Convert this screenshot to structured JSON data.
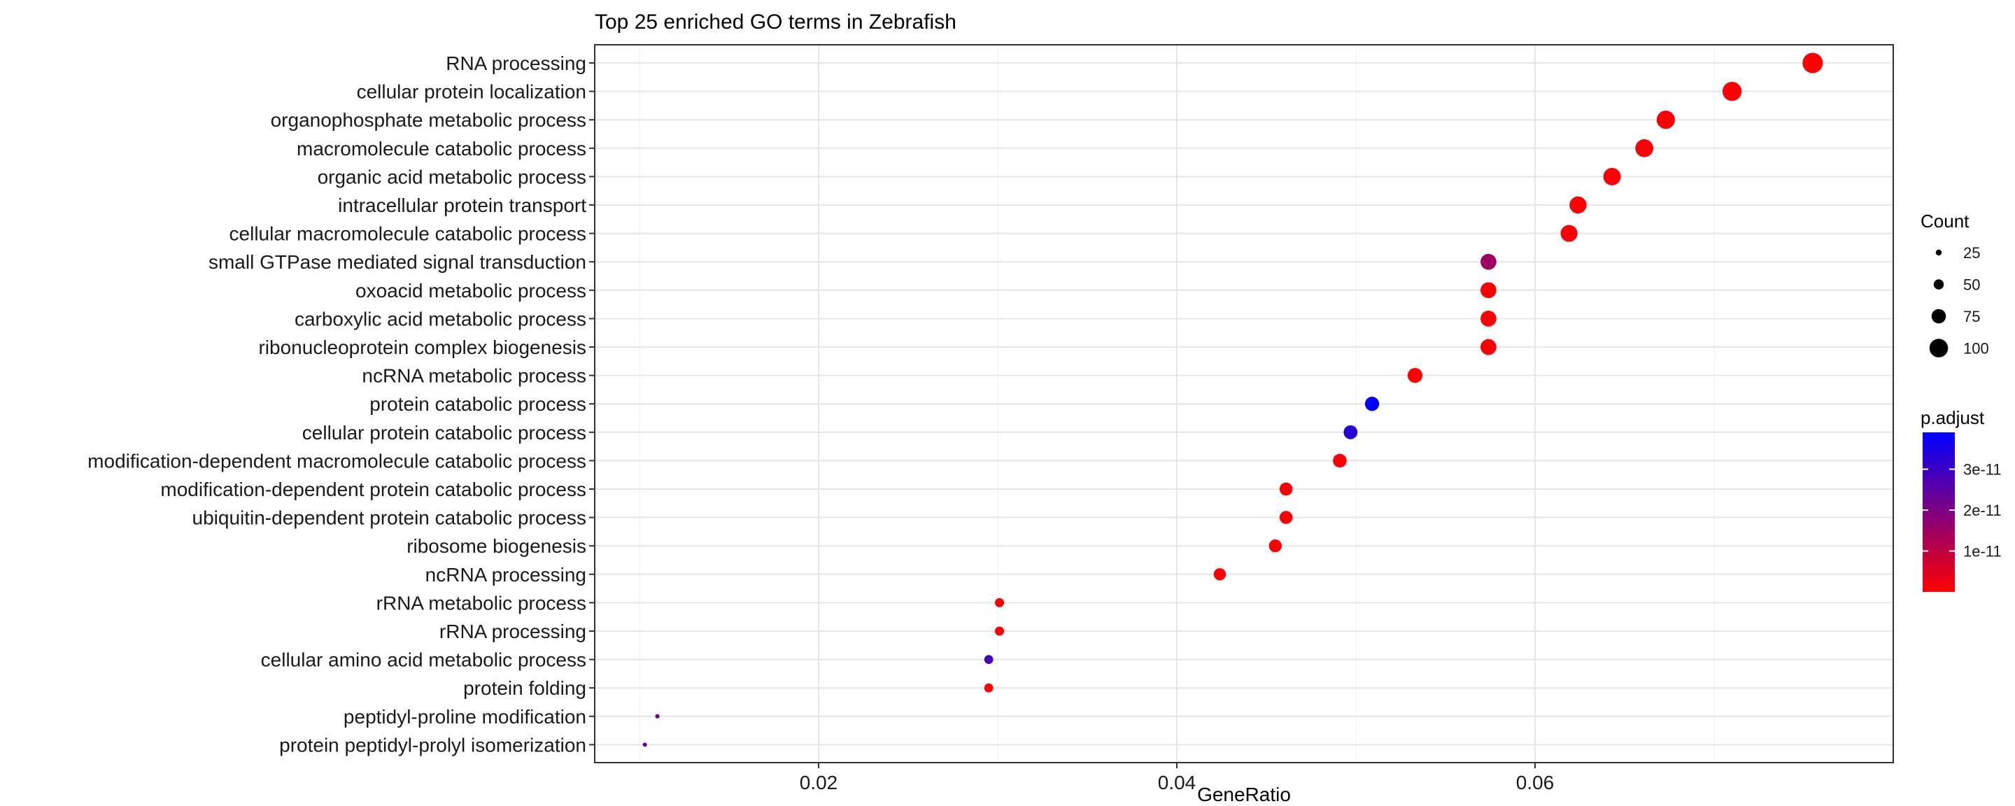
{
  "chart_data": {
    "type": "scatter",
    "title": "Top 25 enriched GO terms in Zebrafish",
    "xlabel": "GeneRatio",
    "ylabel": "",
    "xlim": [
      0.0075,
      0.08
    ],
    "x_ticks": [
      0.02,
      0.04,
      0.06
    ],
    "x_tick_labels": [
      "0.02",
      "0.04",
      "0.06"
    ],
    "grid": true,
    "legend_position": "right",
    "size_legend": {
      "title": "Count",
      "values": [
        25,
        50,
        75,
        100
      ],
      "labels": [
        "25",
        "50",
        "75",
        "100"
      ]
    },
    "color_legend": {
      "title": "p.adjust",
      "low_color": "#ff0000",
      "high_color": "#0000ff",
      "range": [
        0,
        3.9e-11
      ],
      "ticks": [
        1e-11,
        2e-11,
        3e-11
      ],
      "tick_labels": [
        "1e-11",
        "2e-11",
        "3e-11"
      ]
    },
    "points": [
      {
        "term": "RNA processing",
        "gene_ratio": 0.0755,
        "count": 110,
        "p_adjust": 1e-13
      },
      {
        "term": "cellular protein localization",
        "gene_ratio": 0.071,
        "count": 103,
        "p_adjust": 5e-13
      },
      {
        "term": "organophosphate metabolic process",
        "gene_ratio": 0.0673,
        "count": 98,
        "p_adjust": 8e-13
      },
      {
        "term": "macromolecule catabolic process",
        "gene_ratio": 0.0661,
        "count": 96,
        "p_adjust": 5e-13
      },
      {
        "term": "organic acid metabolic process",
        "gene_ratio": 0.0643,
        "count": 93,
        "p_adjust": 6e-13
      },
      {
        "term": "intracellular protein transport",
        "gene_ratio": 0.0624,
        "count": 91,
        "p_adjust": 4e-13
      },
      {
        "term": "cellular macromolecule catabolic process",
        "gene_ratio": 0.0619,
        "count": 90,
        "p_adjust": 6e-13
      },
      {
        "term": "small GTPase mediated signal transduction",
        "gene_ratio": 0.0574,
        "count": 84,
        "p_adjust": 1.5e-11
      },
      {
        "term": "oxoacid metabolic process",
        "gene_ratio": 0.0574,
        "count": 84,
        "p_adjust": 4e-13
      },
      {
        "term": "carboxylic acid metabolic process",
        "gene_ratio": 0.0574,
        "count": 84,
        "p_adjust": 4e-13
      },
      {
        "term": "ribonucleoprotein complex biogenesis",
        "gene_ratio": 0.0574,
        "count": 84,
        "p_adjust": 5e-13
      },
      {
        "term": "ncRNA metabolic process",
        "gene_ratio": 0.0533,
        "count": 78,
        "p_adjust": 5e-13
      },
      {
        "term": "protein catabolic process",
        "gene_ratio": 0.0509,
        "count": 74,
        "p_adjust": 3.9e-11
      },
      {
        "term": "cellular protein catabolic process",
        "gene_ratio": 0.0497,
        "count": 72,
        "p_adjust": 3.3e-11
      },
      {
        "term": "modification-dependent macromolecule catabolic process",
        "gene_ratio": 0.0491,
        "count": 71,
        "p_adjust": 6e-13
      },
      {
        "term": "modification-dependent protein catabolic process",
        "gene_ratio": 0.0461,
        "count": 67,
        "p_adjust": 4e-13
      },
      {
        "term": "ubiquitin-dependent protein catabolic process",
        "gene_ratio": 0.0461,
        "count": 67,
        "p_adjust": 4e-13
      },
      {
        "term": "ribosome biogenesis",
        "gene_ratio": 0.0455,
        "count": 66,
        "p_adjust": 4e-13
      },
      {
        "term": "ncRNA processing",
        "gene_ratio": 0.0424,
        "count": 62,
        "p_adjust": 5e-13
      },
      {
        "term": "rRNA metabolic process",
        "gene_ratio": 0.0301,
        "count": 44,
        "p_adjust": 3e-13
      },
      {
        "term": "rRNA processing",
        "gene_ratio": 0.0301,
        "count": 44,
        "p_adjust": 3e-13
      },
      {
        "term": "cellular amino acid metabolic process",
        "gene_ratio": 0.0295,
        "count": 43,
        "p_adjust": 2.8e-11
      },
      {
        "term": "protein folding",
        "gene_ratio": 0.0295,
        "count": 43,
        "p_adjust": 4e-13
      },
      {
        "term": "peptidyl-proline modification",
        "gene_ratio": 0.011,
        "count": 16,
        "p_adjust": 2.1e-11
      },
      {
        "term": "protein peptidyl-prolyl isomerization",
        "gene_ratio": 0.0103,
        "count": 15,
        "p_adjust": 2.4e-11
      }
    ]
  }
}
